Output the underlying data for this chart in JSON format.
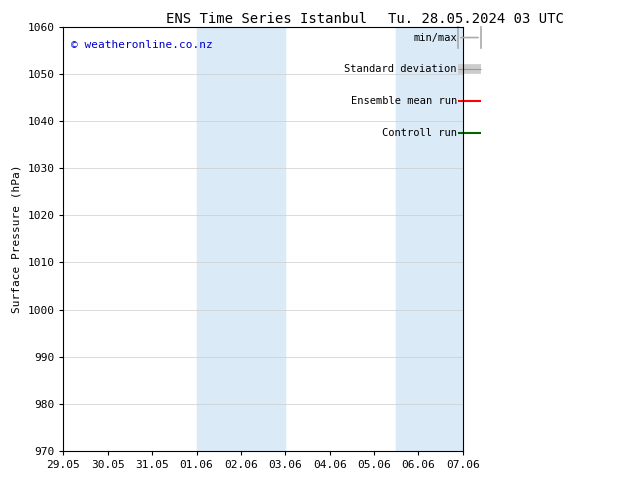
{
  "title_left": "ENS Time Series Istanbul",
  "title_right": "Tu. 28.05.2024 03 UTC",
  "ylabel": "Surface Pressure (hPa)",
  "ylim": [
    970,
    1060
  ],
  "yticks": [
    970,
    980,
    990,
    1000,
    1010,
    1020,
    1030,
    1040,
    1050,
    1060
  ],
  "xtick_labels": [
    "29.05",
    "30.05",
    "31.05",
    "01.06",
    "02.06",
    "03.06",
    "04.06",
    "05.06",
    "06.06",
    "07.06"
  ],
  "xtick_positions": [
    0,
    1,
    2,
    3,
    4,
    5,
    6,
    7,
    8,
    9
  ],
  "shaded_regions": [
    {
      "xmin": 3.0,
      "xmax": 5.0,
      "color": "#daeaf7"
    },
    {
      "xmin": 7.5,
      "xmax": 9.0,
      "color": "#daeaf7"
    }
  ],
  "watermark_text": "© weatheronline.co.nz",
  "watermark_color": "#0000cc",
  "bg_color": "#ffffff",
  "plot_bg_color": "#ffffff",
  "legend_entries": [
    {
      "label": "min/max",
      "color": "#aaaaaa",
      "lw": 1.2,
      "type": "minmax"
    },
    {
      "label": "Standard deviation",
      "color": "#cccccc",
      "lw": 7,
      "type": "band"
    },
    {
      "label": "Ensemble mean run",
      "color": "#ff0000",
      "lw": 1.5,
      "type": "line"
    },
    {
      "label": "Controll run",
      "color": "#006600",
      "lw": 1.5,
      "type": "line"
    }
  ],
  "grid_color": "#cccccc",
  "spine_color": "#000000",
  "tick_color": "#000000",
  "font_size": 8,
  "title_font_size": 10
}
